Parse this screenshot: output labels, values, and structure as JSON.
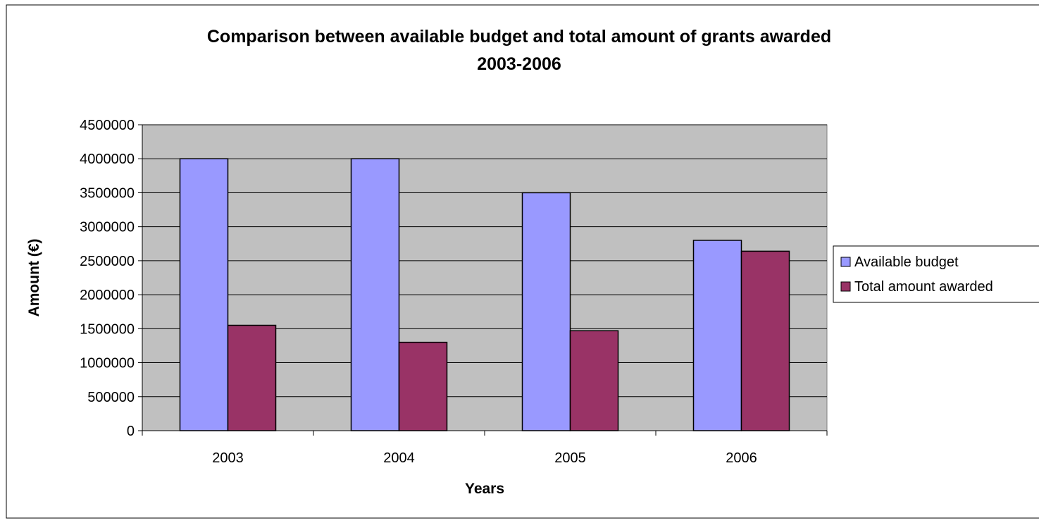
{
  "chart_data": {
    "type": "bar",
    "title_line1": "Comparison between available budget and total amount of grants awarded",
    "title_line2": "2003-2006",
    "xlabel": "Years",
    "ylabel": "Amount (€)",
    "categories": [
      "2003",
      "2004",
      "2005",
      "2006"
    ],
    "series": [
      {
        "name": "Available budget",
        "values": [
          4000000,
          4000000,
          3500000,
          2800000
        ],
        "color": "#9999FF"
      },
      {
        "name": "Total amount awarded",
        "values": [
          1550000,
          1300000,
          1470000,
          2640000
        ],
        "color": "#993366"
      }
    ],
    "ylim": [
      0,
      4500000
    ],
    "yticks": [
      "0",
      "500000",
      "1000000",
      "1500000",
      "2000000",
      "2500000",
      "3000000",
      "3500000",
      "4000000",
      "4500000"
    ],
    "grid": true,
    "plot_background": "#C0C0C0",
    "legend_position": "right"
  }
}
